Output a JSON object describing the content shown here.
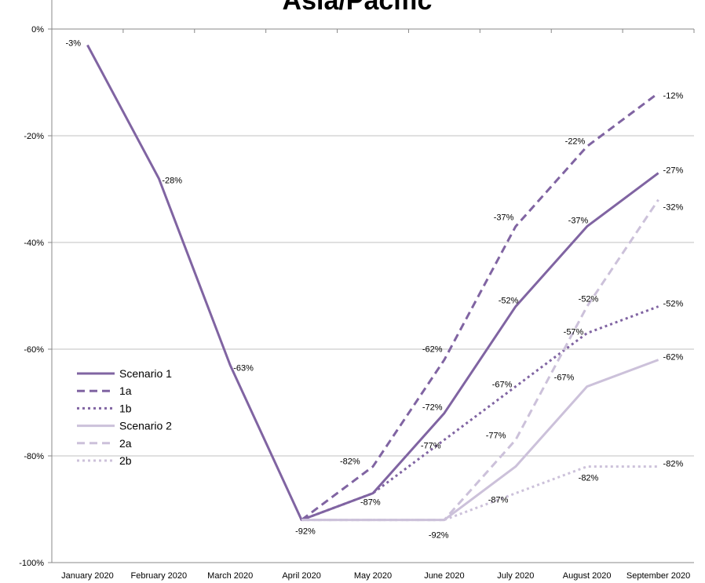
{
  "chart_data": {
    "type": "line",
    "title": "Asia/Pacific",
    "categories": [
      "January 2020",
      "February 2020",
      "March 2020",
      "April 2020",
      "May 2020",
      "June 2020",
      "July 2020",
      "August 2020",
      "September 2020"
    ],
    "y_ticks": [
      "0%",
      "-20%",
      "-40%",
      "-60%",
      "-80%",
      "-100%"
    ],
    "ylim": [
      -100,
      0
    ],
    "grid": true,
    "legend_position": "left",
    "series": [
      {
        "name": "Scenario 1",
        "color": "#8064a2",
        "style": "solid",
        "values": [
          -3,
          -28,
          -63,
          -92,
          -87,
          -72,
          -52,
          -37,
          -27
        ],
        "labels": [
          "-3%",
          "-28%",
          "-63%",
          "-92%",
          "-87%",
          "-72%",
          "-52%",
          "-37%",
          "-27%"
        ]
      },
      {
        "name": "1a",
        "color": "#8064a2",
        "style": "dashed",
        "values": [
          null,
          null,
          null,
          -92,
          -82,
          -62,
          -37,
          -22,
          -12
        ],
        "labels": [
          null,
          null,
          null,
          null,
          "-82%",
          "-62%",
          "-37%",
          "-22%",
          "-12%"
        ]
      },
      {
        "name": "1b",
        "color": "#8064a2",
        "style": "dotted",
        "values": [
          null,
          null,
          null,
          -92,
          -87,
          -77,
          -67,
          -57,
          -52
        ],
        "labels": [
          null,
          null,
          null,
          null,
          null,
          "-77%",
          "-67%",
          "-57%",
          "-52%"
        ]
      },
      {
        "name": "Scenario 2",
        "color": "#ccc1da",
        "style": "solid",
        "values": [
          null,
          null,
          null,
          -92,
          -92,
          -92,
          -82,
          -67,
          -62
        ],
        "labels": [
          null,
          null,
          null,
          null,
          null,
          "-92%",
          null,
          "-67%",
          "-62%"
        ]
      },
      {
        "name": "2a",
        "color": "#ccc1da",
        "style": "dashed",
        "values": [
          null,
          null,
          null,
          -92,
          -92,
          -92,
          -77,
          -52,
          -32
        ],
        "labels": [
          null,
          null,
          null,
          null,
          null,
          null,
          "-77%",
          "-52%",
          "-32%"
        ]
      },
      {
        "name": "2b",
        "color": "#ccc1da",
        "style": "dotted",
        "values": [
          null,
          null,
          null,
          -92,
          -92,
          -92,
          -87,
          -82,
          -82
        ],
        "labels": [
          null,
          null,
          null,
          null,
          null,
          null,
          "-87%",
          "-82%",
          "-82%"
        ]
      }
    ]
  }
}
